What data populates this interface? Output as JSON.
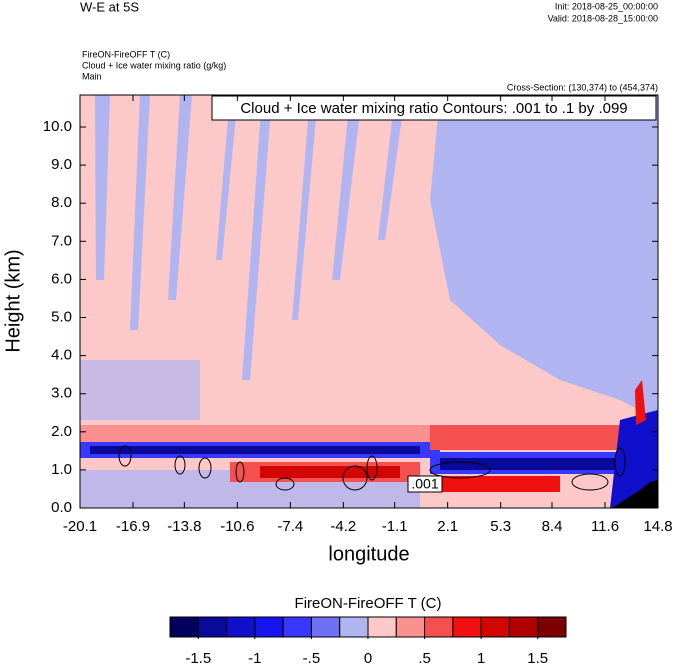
{
  "chart_data": {
    "type": "contour",
    "title": "W-E at 5S",
    "init": "Init: 2018-08-25_00:00:00",
    "valid": "Valid: 2018-08-28_15:00:00",
    "field_title": "FireON-FireOFF T   (C)",
    "contour_title": "Cloud + Ice water mixing ratio   (g/kg)",
    "domain_label": "Main",
    "cross_section": "Cross-Section: (130,374) to (454,374)",
    "contour_info": "Cloud + Ice water mixing ratio Contours: .001 to .1 by .099",
    "contour_label": ".001",
    "x_label": "longitude",
    "y_label": "Height (km)",
    "xlim": [
      -20.1,
      14.8
    ],
    "xticks": [
      -20.1,
      -16.9,
      -13.8,
      -10.6,
      -7.4,
      -4.2,
      -1.1,
      2.1,
      5.3,
      8.4,
      11.6,
      14.8
    ],
    "ylim": [
      0,
      10.84
    ],
    "yticks": [
      {
        "value": 0,
        "label": "0.0"
      },
      {
        "value": 1,
        "label": "1.0"
      },
      {
        "value": 2,
        "label": "2.0"
      },
      {
        "value": 3,
        "label": "3.0"
      },
      {
        "value": 4,
        "label": "4.0"
      },
      {
        "value": 5,
        "label": "5.0"
      },
      {
        "value": 6,
        "label": "6.0"
      },
      {
        "value": 7,
        "label": "7.0"
      },
      {
        "value": 8,
        "label": "8.0"
      },
      {
        "value": 9,
        "label": "9.0"
      },
      {
        "value": 10,
        "label": "10.0"
      }
    ],
    "colorbar": {
      "title": "FireON-FireOFF T  (C)",
      "lim": [
        -1.75,
        1.75
      ],
      "colors": [
        "#02005c",
        "#0a0a9a",
        "#1010cc",
        "#1515f0",
        "#3838ff",
        "#7070f5",
        "#b0b4f0",
        "#fcc8c8",
        "#fa9090",
        "#f55050",
        "#f01010",
        "#d20505",
        "#b00000",
        "#7c0000"
      ],
      "ticks": [
        {
          "value": -1.5,
          "label": "-1.5"
        },
        {
          "value": -1,
          "label": "-1"
        },
        {
          "value": -0.5,
          "label": "-.5"
        },
        0,
        {
          "value": 0.5,
          "label": ".5"
        },
        1,
        1.5
      ]
    }
  }
}
